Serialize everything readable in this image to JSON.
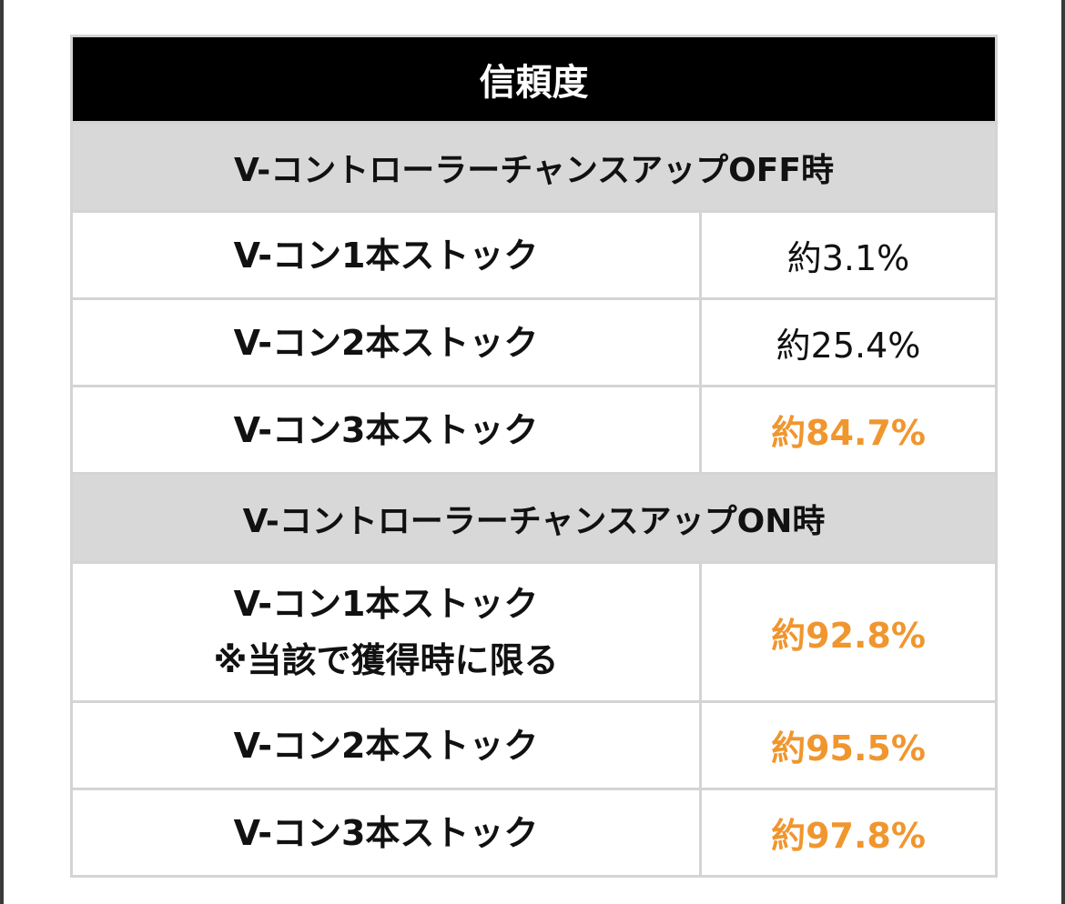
{
  "table": {
    "title": "信頼度",
    "sections": [
      {
        "heading": "V-コントローラーチャンスアップOFF時",
        "rows": [
          {
            "label": "V-コン1本ストック",
            "note": "",
            "value": "約3.1%",
            "highlight": false
          },
          {
            "label": "V-コン2本ストック",
            "note": "",
            "value": "約25.4%",
            "highlight": false
          },
          {
            "label": "V-コン3本ストック",
            "note": "",
            "value": "約84.7%",
            "highlight": true
          }
        ]
      },
      {
        "heading": "V-コントローラーチャンスアップON時",
        "rows": [
          {
            "label": "V-コン1本ストック",
            "note": "※当該で獲得時に限る",
            "value": "約92.8%",
            "highlight": true
          },
          {
            "label": "V-コン2本ストック",
            "note": "",
            "value": "約95.5%",
            "highlight": true
          },
          {
            "label": "V-コン3本ストック",
            "note": "",
            "value": "約97.8%",
            "highlight": true
          }
        ]
      }
    ]
  },
  "colors": {
    "title_bg": "#000000",
    "section_bg": "#d8d8d8",
    "highlight": "#f0962e",
    "border": "#d4d4d4"
  }
}
